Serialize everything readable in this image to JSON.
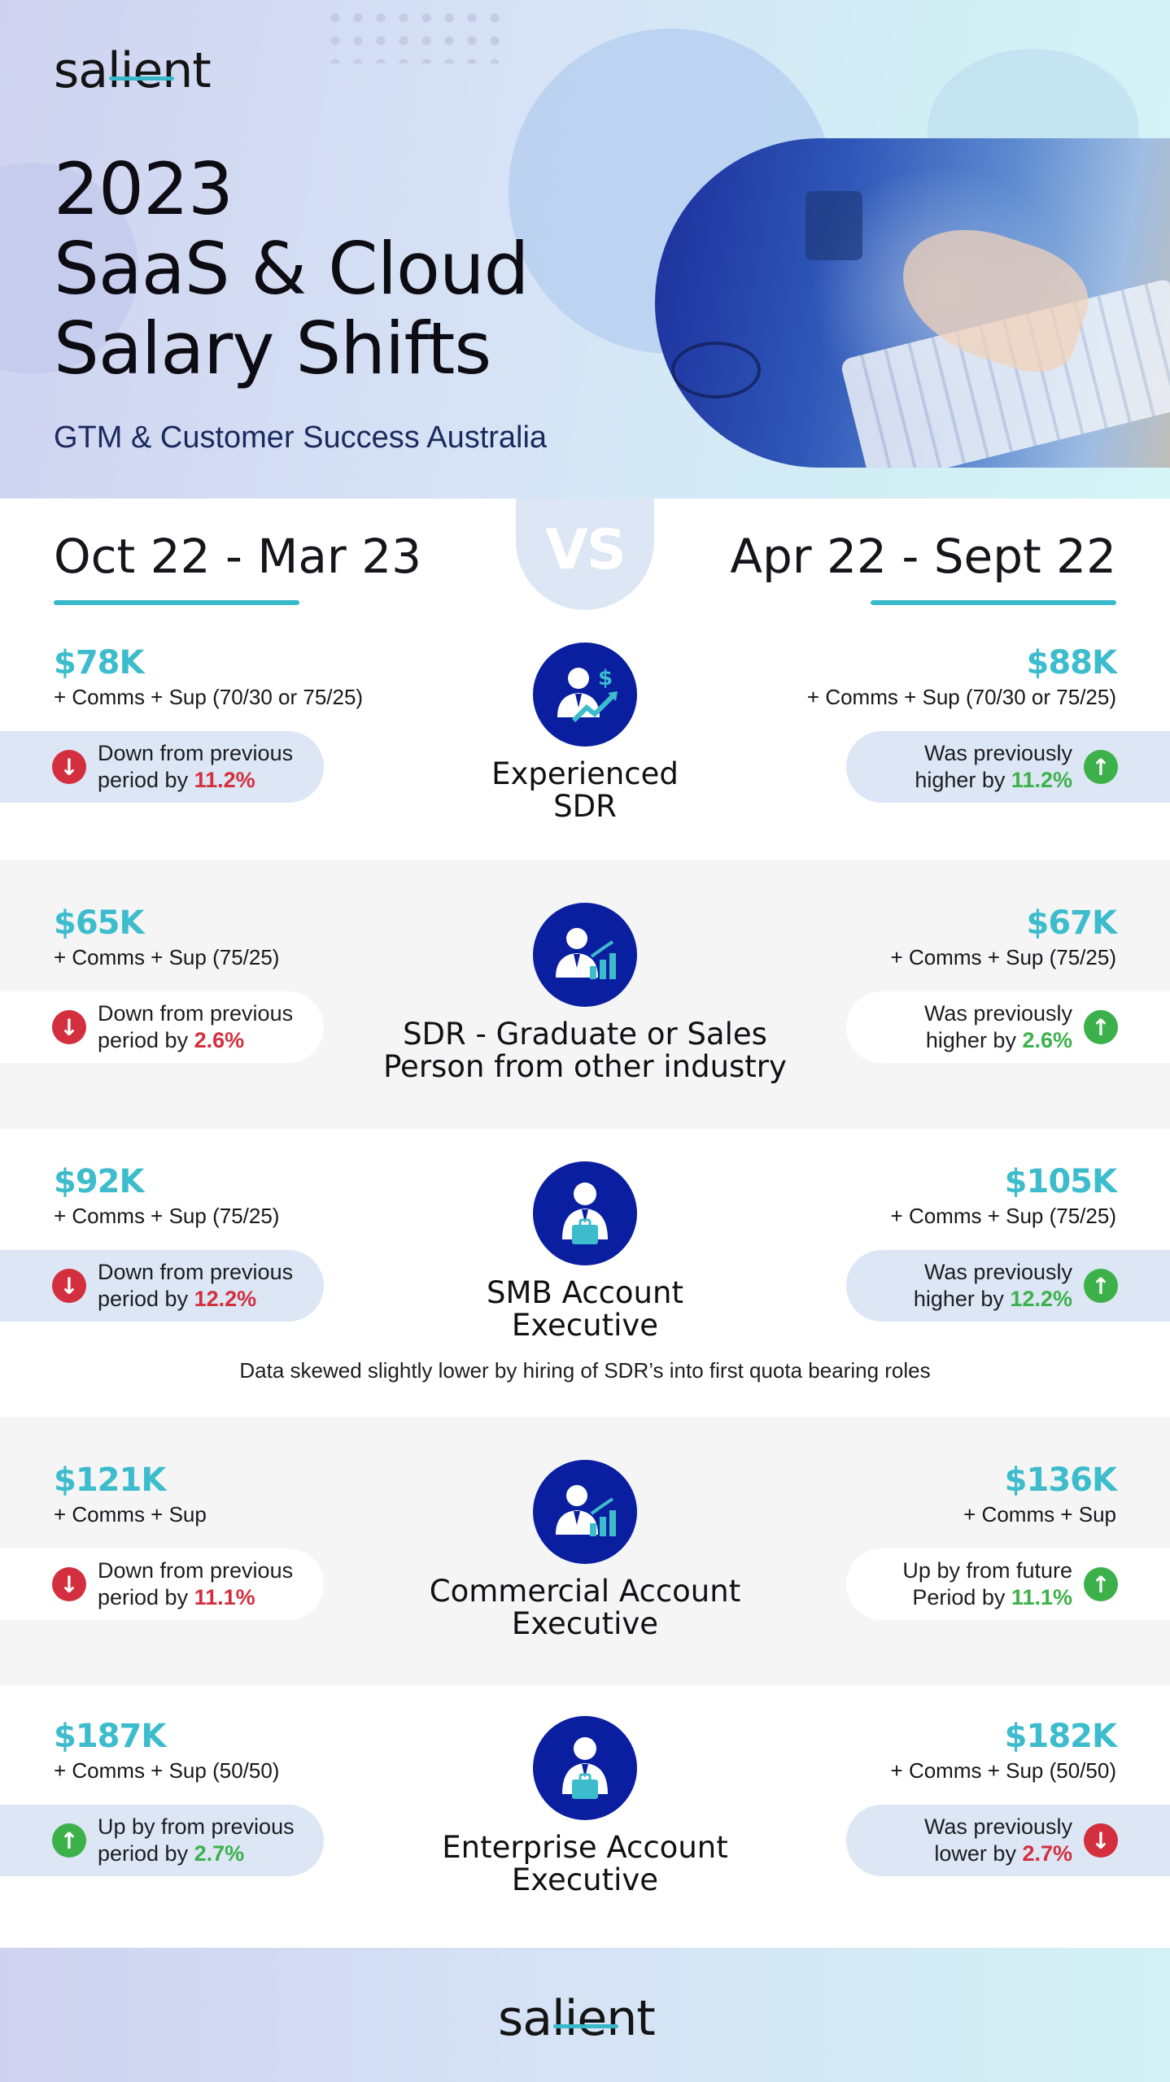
{
  "brand": {
    "logo_text": "salient",
    "accent_color": "#38b9c9",
    "icon_color": "#0a1fa0"
  },
  "hero": {
    "title_line1": "2023",
    "title_line2": "SaaS & Cloud",
    "title_line3": "Salary Shifts",
    "subtitle": "GTM & Customer Success Australia"
  },
  "columns": {
    "left_period": "Oct 22 - Mar 23",
    "vs": "VS",
    "right_period": "Apr 22 - Sept 22"
  },
  "roles": [
    {
      "name_line1": "Experienced",
      "name_line2": "SDR",
      "icon": "executive-dollar-growth-icon",
      "left_amount": "$78K",
      "left_detail": "+ Comms + Sup (70/30 or 75/25)",
      "left_change_line1": "Down from previous",
      "left_change_line2": "period by ",
      "left_change_pct": "11.2%",
      "left_direction": "down",
      "right_amount": "$88K",
      "right_detail": "+ Comms + Sup (70/30 or 75/25)",
      "right_change_line1": "Was previously",
      "right_change_line2": "higher by ",
      "right_change_pct": "11.2%",
      "right_direction": "up"
    },
    {
      "name_line1": "SDR - Graduate or Sales",
      "name_line2": "Person from other industry",
      "icon": "person-bar-chart-icon",
      "left_amount": "$65K",
      "left_detail": "+ Comms + Sup (75/25)",
      "left_change_line1": "Down from previous",
      "left_change_line2": "period by ",
      "left_change_pct": "2.6%",
      "left_direction": "down",
      "right_amount": "$67K",
      "right_detail": "+ Comms + Sup (75/25)",
      "right_change_line1": "Was previously",
      "right_change_line2": "higher by ",
      "right_change_pct": "2.6%",
      "right_direction": "up"
    },
    {
      "name_line1": "SMB Account",
      "name_line2": "Executive",
      "icon": "businessman-briefcase-icon",
      "left_amount": "$92K",
      "left_detail": "+ Comms + Sup (75/25)",
      "left_change_line1": "Down from previous",
      "left_change_line2": "period by ",
      "left_change_pct": "12.2%",
      "left_direction": "down",
      "right_amount": "$105K",
      "right_detail": "+ Comms + Sup (75/25)",
      "right_change_line1": "Was previously",
      "right_change_line2": "higher by ",
      "right_change_pct": "12.2%",
      "right_direction": "up"
    },
    {
      "name_line1": "Commercial Account",
      "name_line2": "Executive",
      "icon": "person-bar-chart-icon",
      "left_amount": "$121K",
      "left_detail": "+ Comms + Sup",
      "left_change_line1": "Down from previous",
      "left_change_line2": "period by ",
      "left_change_pct": "11.1%",
      "left_direction": "down",
      "right_amount": "$136K",
      "right_detail": "+ Comms + Sup",
      "right_change_line1": "Up by from future",
      "right_change_line2": "Period by ",
      "right_change_pct": "11.1%",
      "right_direction": "up"
    },
    {
      "name_line1": "Enterprise Account",
      "name_line2": "Executive",
      "icon": "businessman-briefcase-icon",
      "left_amount": "$187K",
      "left_detail": "+ Comms + Sup (50/50)",
      "left_change_line1": "Up by from previous",
      "left_change_line2": "period by ",
      "left_change_pct": "2.7%",
      "left_direction": "up",
      "right_amount": "$182K",
      "right_detail": "+ Comms + Sup (50/50)",
      "right_change_line1": "Was previously",
      "right_change_line2": "lower by ",
      "right_change_pct": "2.7%",
      "right_direction": "down"
    }
  ],
  "note": "Data skewed slightly lower by hiring of SDR’s into first quota bearing roles",
  "footer": {
    "logo_text": "salient"
  }
}
